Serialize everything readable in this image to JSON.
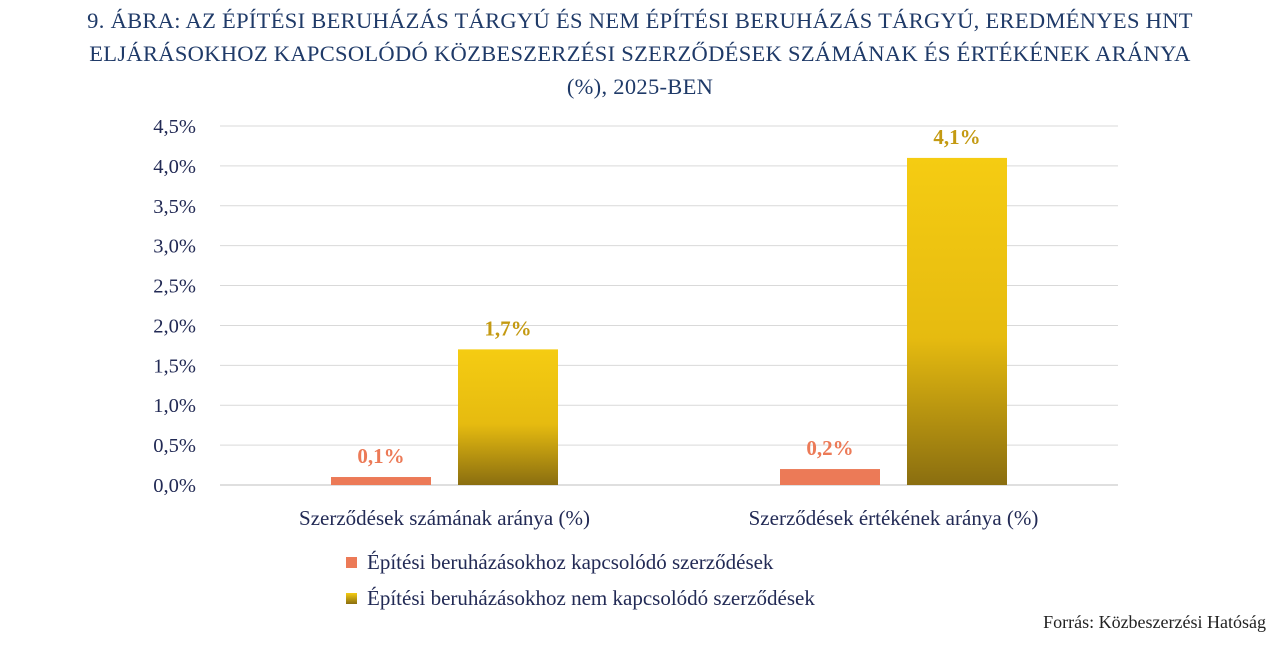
{
  "title": {
    "line1": "9.   ÁBRA: AZ ÉPÍTÉSI BERUHÁZÁS TÁRGYÚ ÉS NEM ÉPÍTÉSI BERUHÁZÁS TÁRGYÚ, EREDMÉNYES HNT",
    "line2": "ELJÁRÁSOKHOZ KAPCSOLÓDÓ KÖZBESZERZÉSI SZERZŐDÉSEK SZÁMÁNAK ÉS ÉRTÉKÉNEK ARÁNYA",
    "line3": "(%), 2025-BEN"
  },
  "source": "Forrás: Közbeszerzési Hatóság",
  "chart_data": {
    "type": "bar",
    "categories": [
      "Szerződések számának aránya (%)",
      "Szerződések értékének aránya (%)"
    ],
    "series": [
      {
        "name": "Építési beruházásokhoz kapcsolódó szerződések",
        "values": [
          0.1,
          0.2
        ],
        "labels": [
          "0,1%",
          "0,2%"
        ],
        "color": "#ec7a57"
      },
      {
        "name": "Építési beruházásokhoz nem kapcsolódó szerződések",
        "values": [
          1.7,
          4.1
        ],
        "labels": [
          "1,7%",
          "4,1%"
        ],
        "color": "#f5cc12",
        "gradient_end": "#8a6e10"
      }
    ],
    "ylim": [
      0,
      4.5
    ],
    "y_ticks": [
      "0,0%",
      "0,5%",
      "1,0%",
      "1,5%",
      "2,0%",
      "2,5%",
      "3,0%",
      "3,5%",
      "4,0%",
      "4,5%"
    ],
    "grid": true,
    "legend_placement": "bottom",
    "colors": {
      "label_series1": "#ec7a57",
      "label_series2": "#c49a12",
      "text": "#222a55"
    }
  }
}
